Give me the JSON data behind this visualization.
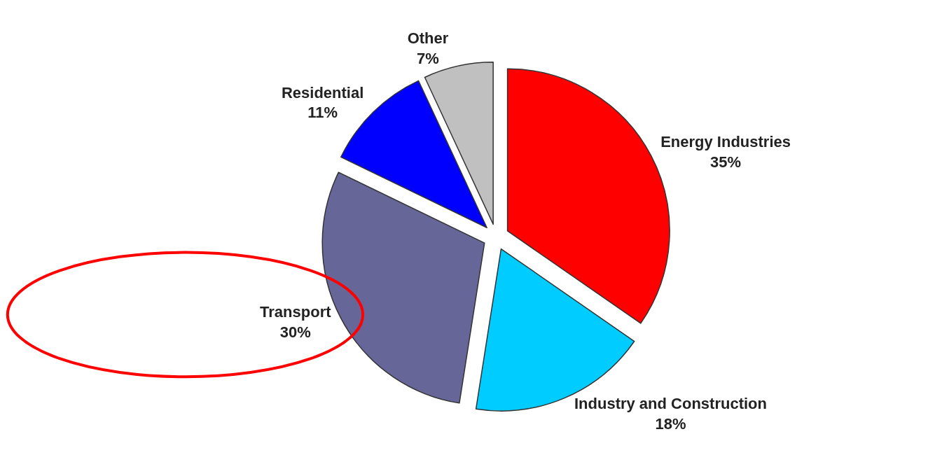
{
  "chart_data": {
    "type": "pie",
    "categories": [
      "Energy Industries",
      "Industry and Construction",
      "Transport",
      "Residential",
      "Other"
    ],
    "values": [
      35,
      18,
      30,
      11,
      7
    ],
    "value_labels": [
      "35%",
      "18%",
      "30%",
      "11%",
      "7%"
    ],
    "colors": [
      "#ff0000",
      "#00ccff",
      "#666699",
      "#0000ff",
      "#c0c0c0"
    ],
    "legend": false
  }
}
